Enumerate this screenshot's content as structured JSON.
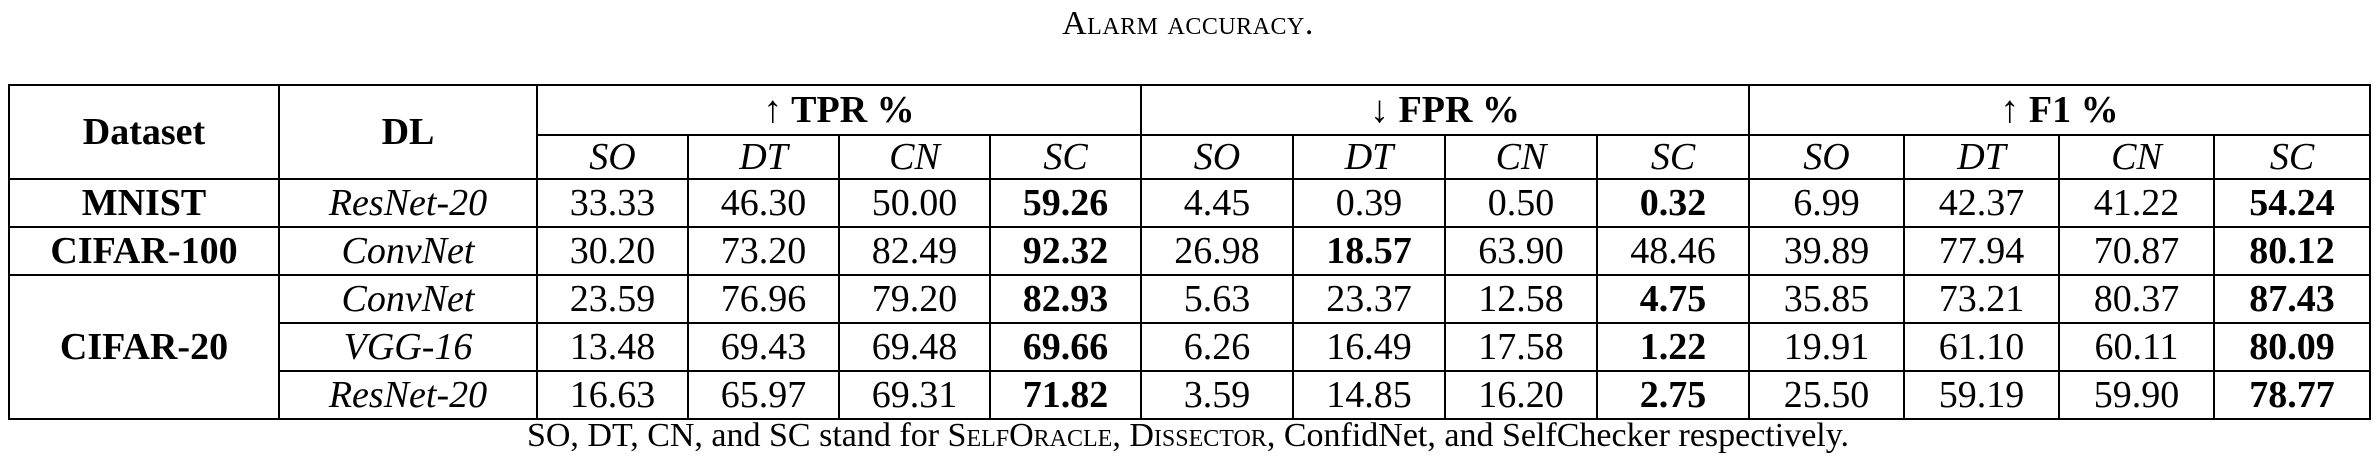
{
  "caption": "Alarm accuracy.",
  "table": {
    "col_dataset": "Dataset",
    "col_dl": "DL",
    "groups": [
      {
        "label": "↑ TPR %",
        "subs": [
          "SO",
          "DT",
          "CN",
          "SC"
        ]
      },
      {
        "label": "↓ FPR %",
        "subs": [
          "SO",
          "DT",
          "CN",
          "SC"
        ]
      },
      {
        "label": "↑ F1 %",
        "subs": [
          "SO",
          "DT",
          "CN",
          "SC"
        ]
      }
    ],
    "rows": [
      {
        "dataset": "MNIST",
        "model": "ResNet-20",
        "values": [
          "33.33",
          "46.30",
          "50.00",
          "59.26",
          "4.45",
          "0.39",
          "0.50",
          "0.32",
          "6.99",
          "42.37",
          "41.22",
          "54.24"
        ],
        "best": [
          3,
          7,
          11
        ]
      },
      {
        "dataset": "CIFAR-100",
        "model": "ConvNet",
        "values": [
          "30.20",
          "73.20",
          "82.49",
          "92.32",
          "26.98",
          "18.57",
          "63.90",
          "48.46",
          "39.89",
          "77.94",
          "70.87",
          "80.12"
        ],
        "best": [
          3,
          5,
          11
        ]
      },
      {
        "dataset": "CIFAR-20",
        "model": "ConvNet",
        "values": [
          "23.59",
          "76.96",
          "79.20",
          "82.93",
          "5.63",
          "23.37",
          "12.58",
          "4.75",
          "35.85",
          "73.21",
          "80.37",
          "87.43"
        ],
        "best": [
          3,
          7,
          11
        ]
      },
      {
        "dataset": "CIFAR-20",
        "model": "VGG-16",
        "values": [
          "13.48",
          "69.43",
          "69.48",
          "69.66",
          "6.26",
          "16.49",
          "17.58",
          "1.22",
          "19.91",
          "61.10",
          "60.11",
          "80.09"
        ],
        "best": [
          3,
          7,
          11
        ]
      },
      {
        "dataset": "CIFAR-20",
        "model": "ResNet-20",
        "values": [
          "16.63",
          "65.97",
          "69.31",
          "71.82",
          "3.59",
          "14.85",
          "16.20",
          "2.75",
          "25.50",
          "59.19",
          "59.90",
          "78.77"
        ],
        "best": [
          3,
          7,
          11
        ]
      }
    ]
  },
  "footnote": {
    "prefix": "SO, DT, CN, and SC stand for ",
    "name1": "SelfOracle",
    "sep1": ", ",
    "name2": "Dissector",
    "rest": ", ConfidNet, and SelfChecker respectively."
  }
}
